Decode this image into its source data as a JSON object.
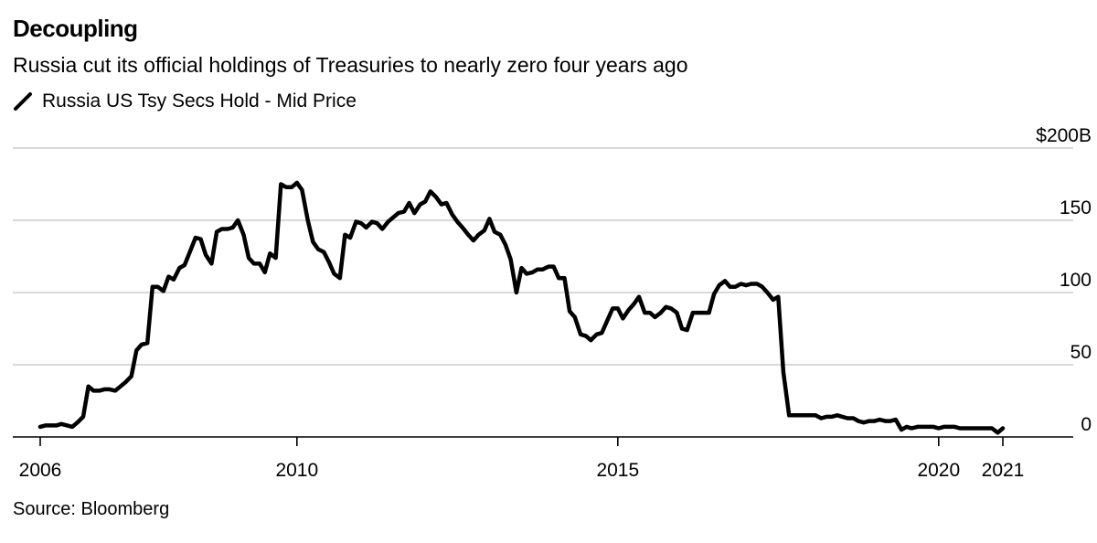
{
  "title": "Decoupling",
  "subtitle": "Russia cut its official holdings of Treasuries to nearly zero four years ago",
  "legend": {
    "label": "Russia US Tsy Secs Hold - Mid Price",
    "color": "#000000"
  },
  "source": "Source: Bloomberg",
  "colors": {
    "line": "#000000",
    "grid": "#cccccc",
    "axis": "#000000"
  },
  "chart_data": {
    "type": "line",
    "title": "Decoupling",
    "subtitle": "Russia cut its official holdings of Treasuries to nearly zero four years ago",
    "xlabel": "",
    "ylabel": "",
    "xlim": [
      2006,
      2021.8
    ],
    "ylim": [
      0,
      200
    ],
    "grid": true,
    "legend_position": "top-left",
    "y_axis_side": "right",
    "xticks": [
      {
        "value": 2006,
        "label": "2006"
      },
      {
        "value": 2010,
        "label": "2010"
      },
      {
        "value": 2015,
        "label": "2015"
      },
      {
        "value": 2020,
        "label": "2020"
      },
      {
        "value": 2021,
        "label": "2021"
      }
    ],
    "yticks": [
      {
        "value": 0,
        "label": "0"
      },
      {
        "value": 50,
        "label": "50"
      },
      {
        "value": 100,
        "label": "100"
      },
      {
        "value": 150,
        "label": "150"
      },
      {
        "value": 200,
        "label": "$200B"
      }
    ],
    "series": [
      {
        "name": "Russia US Tsy Secs Hold - Mid Price",
        "x": [
          2006.0,
          2006.08,
          2006.17,
          2006.25,
          2006.33,
          2006.42,
          2006.5,
          2006.58,
          2006.67,
          2006.75,
          2006.83,
          2006.92,
          2007.0,
          2007.08,
          2007.17,
          2007.25,
          2007.33,
          2007.42,
          2007.5,
          2007.58,
          2007.67,
          2007.75,
          2007.83,
          2007.92,
          2008.0,
          2008.08,
          2008.17,
          2008.25,
          2008.33,
          2008.42,
          2008.5,
          2008.58,
          2008.67,
          2008.75,
          2008.83,
          2008.92,
          2009.0,
          2009.08,
          2009.17,
          2009.25,
          2009.33,
          2009.42,
          2009.5,
          2009.58,
          2009.67,
          2009.75,
          2009.83,
          2009.92,
          2010.0,
          2010.08,
          2010.17,
          2010.25,
          2010.33,
          2010.42,
          2010.5,
          2010.58,
          2010.67,
          2010.75,
          2010.83,
          2010.92,
          2011.0,
          2011.08,
          2011.17,
          2011.25,
          2011.33,
          2011.42,
          2011.5,
          2011.58,
          2011.67,
          2011.75,
          2011.83,
          2011.92,
          2012.0,
          2012.08,
          2012.17,
          2012.25,
          2012.33,
          2012.42,
          2012.5,
          2012.58,
          2012.67,
          2012.75,
          2012.83,
          2012.92,
          2013.0,
          2013.08,
          2013.17,
          2013.25,
          2013.33,
          2013.42,
          2013.5,
          2013.58,
          2013.67,
          2013.75,
          2013.83,
          2013.92,
          2014.0,
          2014.08,
          2014.17,
          2014.25,
          2014.33,
          2014.42,
          2014.5,
          2014.58,
          2014.67,
          2014.75,
          2014.83,
          2014.92,
          2015.0,
          2015.08,
          2015.17,
          2015.25,
          2015.33,
          2015.42,
          2015.5,
          2015.58,
          2015.67,
          2015.75,
          2015.83,
          2015.92,
          2016.0,
          2016.08,
          2016.17,
          2016.25,
          2016.33,
          2016.42,
          2016.5,
          2016.58,
          2016.67,
          2016.75,
          2016.83,
          2016.92,
          2017.0,
          2017.08,
          2017.17,
          2017.25,
          2017.33,
          2017.42,
          2017.5,
          2017.58,
          2017.67,
          2017.75,
          2017.83,
          2017.92,
          2018.0,
          2018.08,
          2018.17,
          2018.25,
          2018.33,
          2018.42,
          2018.5,
          2018.58,
          2018.67,
          2018.75,
          2018.83,
          2018.92,
          2019.0,
          2019.08,
          2019.17,
          2019.25,
          2019.33,
          2019.42,
          2019.5,
          2019.58,
          2019.67,
          2019.75,
          2019.83,
          2019.92,
          2020.0,
          2020.08,
          2020.17,
          2020.25,
          2020.33,
          2020.42,
          2020.5,
          2020.58,
          2020.67,
          2020.75,
          2020.83,
          2020.92,
          2021.0
        ],
        "values": [
          7,
          8,
          8,
          8,
          9,
          8,
          7,
          10,
          14,
          35,
          32,
          32,
          33,
          33,
          32,
          35,
          38,
          42,
          60,
          64,
          65,
          104,
          104,
          101,
          111,
          109,
          117,
          119,
          128,
          138,
          137,
          126,
          120,
          142,
          144,
          144,
          145,
          150,
          140,
          124,
          120,
          120,
          114,
          127,
          124,
          175,
          173,
          173,
          176,
          171,
          150,
          135,
          130,
          128,
          121,
          113,
          110,
          140,
          138,
          149,
          148,
          145,
          149,
          148,
          144,
          149,
          152,
          155,
          156,
          162,
          155,
          161,
          163,
          170,
          166,
          161,
          162,
          154,
          149,
          145,
          140,
          136,
          140,
          143,
          151,
          142,
          140,
          133,
          123,
          100,
          117,
          113,
          114,
          116,
          116,
          118,
          118,
          110,
          110,
          87,
          83,
          71,
          70,
          67,
          71,
          72,
          80,
          89,
          89,
          82,
          88,
          92,
          97,
          86,
          86,
          83,
          86,
          90,
          89,
          86,
          75,
          74,
          86,
          86,
          86,
          86,
          99,
          105,
          108,
          104,
          104,
          106,
          105,
          106,
          106,
          104,
          100,
          95,
          97,
          45,
          15,
          15,
          15,
          15,
          15,
          15,
          13,
          14,
          14,
          15,
          14,
          13,
          13,
          11,
          10,
          11,
          11,
          12,
          11,
          11,
          12,
          5,
          7,
          6,
          7,
          7,
          7,
          7,
          6,
          7,
          7,
          7,
          6,
          6,
          6,
          6,
          6,
          6,
          6,
          3,
          6
        ]
      }
    ]
  }
}
